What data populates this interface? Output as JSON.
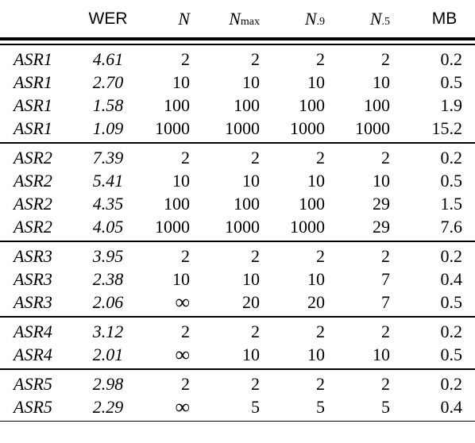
{
  "table": {
    "headers": {
      "system": "",
      "wer": "WER",
      "n": "N",
      "nmax_base": "N",
      "nmax_sub": "max",
      "n9_base": "N",
      "n9_sub": ".9",
      "n5_base": "N",
      "n5_sub": ".5",
      "mb": "MB"
    },
    "groups": [
      {
        "rows": [
          {
            "system": "ASR1",
            "wer": "4.61",
            "n": "2",
            "nmax": "2",
            "n9": "2",
            "n5": "2",
            "mb": "0.2"
          },
          {
            "system": "ASR1",
            "wer": "2.70",
            "n": "10",
            "nmax": "10",
            "n9": "10",
            "n5": "10",
            "mb": "0.5"
          },
          {
            "system": "ASR1",
            "wer": "1.58",
            "n": "100",
            "nmax": "100",
            "n9": "100",
            "n5": "100",
            "mb": "1.9"
          },
          {
            "system": "ASR1",
            "wer": "1.09",
            "n": "1000",
            "nmax": "1000",
            "n9": "1000",
            "n5": "1000",
            "mb": "15.2"
          }
        ]
      },
      {
        "rows": [
          {
            "system": "ASR2",
            "wer": "7.39",
            "n": "2",
            "nmax": "2",
            "n9": "2",
            "n5": "2",
            "mb": "0.2"
          },
          {
            "system": "ASR2",
            "wer": "5.41",
            "n": "10",
            "nmax": "10",
            "n9": "10",
            "n5": "10",
            "mb": "0.5"
          },
          {
            "system": "ASR2",
            "wer": "4.35",
            "n": "100",
            "nmax": "100",
            "n9": "100",
            "n5": "29",
            "mb": "1.5"
          },
          {
            "system": "ASR2",
            "wer": "4.05",
            "n": "1000",
            "nmax": "1000",
            "n9": "1000",
            "n5": "29",
            "mb": "7.6"
          }
        ]
      },
      {
        "rows": [
          {
            "system": "ASR3",
            "wer": "3.95",
            "n": "2",
            "nmax": "2",
            "n9": "2",
            "n5": "2",
            "mb": "0.2"
          },
          {
            "system": "ASR3",
            "wer": "2.38",
            "n": "10",
            "nmax": "10",
            "n9": "10",
            "n5": "7",
            "mb": "0.4"
          },
          {
            "system": "ASR3",
            "wer": "2.06",
            "n": "∞",
            "nmax": "20",
            "n9": "20",
            "n5": "7",
            "mb": "0.5"
          }
        ]
      },
      {
        "rows": [
          {
            "system": "ASR4",
            "wer": "3.12",
            "n": "2",
            "nmax": "2",
            "n9": "2",
            "n5": "2",
            "mb": "0.2"
          },
          {
            "system": "ASR4",
            "wer": "2.01",
            "n": "∞",
            "nmax": "10",
            "n9": "10",
            "n5": "10",
            "mb": "0.5"
          }
        ]
      },
      {
        "rows": [
          {
            "system": "ASR5",
            "wer": "2.98",
            "n": "2",
            "nmax": "2",
            "n9": "2",
            "n5": "2",
            "mb": "0.2"
          },
          {
            "system": "ASR5",
            "wer": "2.29",
            "n": "∞",
            "nmax": "5",
            "n9": "5",
            "n5": "5",
            "mb": "0.4"
          }
        ]
      }
    ]
  }
}
